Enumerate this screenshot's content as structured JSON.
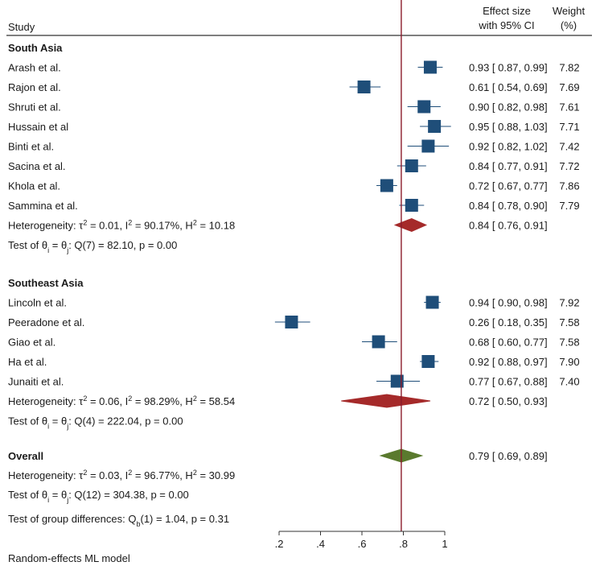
{
  "header": {
    "study": "Study",
    "effect_line1": "Effect size",
    "effect_line2": "with 95% CI",
    "weight_line1": "Weight",
    "weight_line2": "(%)"
  },
  "footer": {
    "model": "Random-effects ML model"
  },
  "chart_data": {
    "type": "forest",
    "axis": {
      "xlim": [
        0.2,
        1.0
      ],
      "ticks": [
        0.2,
        0.4,
        0.6,
        0.8,
        1.0
      ],
      "tick_labels": [
        ".2",
        ".4",
        ".6",
        ".8",
        "1"
      ]
    },
    "reference_line": 0.79,
    "groups": [
      {
        "name": "South Asia",
        "studies": [
          {
            "label": "Arash et al.",
            "es": 0.93,
            "lo": 0.87,
            "hi": 0.99,
            "ci_text": "0.93 [ 0.87,  0.99]",
            "weight": "7.82"
          },
          {
            "label": "Rajon et al.",
            "es": 0.61,
            "lo": 0.54,
            "hi": 0.69,
            "ci_text": "0.61 [ 0.54,  0.69]",
            "weight": "7.69"
          },
          {
            "label": "Shruti et al.",
            "es": 0.9,
            "lo": 0.82,
            "hi": 0.98,
            "ci_text": "0.90 [ 0.82,  0.98]",
            "weight": "7.61"
          },
          {
            "label": "Hussain et al",
            "es": 0.95,
            "lo": 0.88,
            "hi": 1.03,
            "ci_text": "0.95 [ 0.88,  1.03]",
            "weight": "7.71"
          },
          {
            "label": "Binti et al.",
            "es": 0.92,
            "lo": 0.82,
            "hi": 1.02,
            "ci_text": "0.92 [ 0.82,  1.02]",
            "weight": "7.42"
          },
          {
            "label": "Sacina et al.",
            "es": 0.84,
            "lo": 0.77,
            "hi": 0.91,
            "ci_text": "0.84 [ 0.77,  0.91]",
            "weight": "7.72"
          },
          {
            "label": "Khola et al.",
            "es": 0.72,
            "lo": 0.67,
            "hi": 0.77,
            "ci_text": "0.72 [ 0.67,  0.77]",
            "weight": "7.86"
          },
          {
            "label": "Sammina et al.",
            "es": 0.84,
            "lo": 0.78,
            "hi": 0.9,
            "ci_text": "0.84 [ 0.78,  0.90]",
            "weight": "7.79"
          }
        ],
        "pooled": {
          "es": 0.84,
          "lo": 0.76,
          "hi": 0.91,
          "ci_text": "0.84 [ 0.76,  0.91]"
        },
        "heterogeneity": {
          "prefix": "Heterogeneity: τ",
          "tau_val": " = 0.01, I",
          "i_val": " = 90.17%, H",
          "h_val": " = 10.18"
        },
        "test": {
          "prefix": "Test of θ",
          "mid": " = θ",
          "suffix": ": Q(7) = 82.10, p = 0.00"
        }
      },
      {
        "name": "Southeast Asia",
        "studies": [
          {
            "label": "Lincoln et al.",
            "es": 0.94,
            "lo": 0.9,
            "hi": 0.98,
            "ci_text": "0.94 [ 0.90,  0.98]",
            "weight": "7.92"
          },
          {
            "label": "Peeradone et al.",
            "es": 0.26,
            "lo": 0.18,
            "hi": 0.35,
            "ci_text": "0.26 [ 0.18,  0.35]",
            "weight": "7.58"
          },
          {
            "label": "Giao et al.",
            "es": 0.68,
            "lo": 0.6,
            "hi": 0.77,
            "ci_text": "0.68 [ 0.60,  0.77]",
            "weight": "7.58"
          },
          {
            "label": "Ha et al.",
            "es": 0.92,
            "lo": 0.88,
            "hi": 0.97,
            "ci_text": "0.92 [ 0.88,  0.97]",
            "weight": "7.90"
          },
          {
            "label": "Junaiti et al.",
            "es": 0.77,
            "lo": 0.67,
            "hi": 0.88,
            "ci_text": "0.77 [ 0.67,  0.88]",
            "weight": "7.40"
          }
        ],
        "pooled": {
          "es": 0.72,
          "lo": 0.5,
          "hi": 0.93,
          "ci_text": "0.72 [ 0.50,  0.93]"
        },
        "heterogeneity": {
          "prefix": "Heterogeneity: τ",
          "tau_val": " = 0.06, I",
          "i_val": " = 98.29%, H",
          "h_val": " = 58.54"
        },
        "test": {
          "prefix": "Test of θ",
          "mid": " = θ",
          "suffix": ": Q(4) = 222.04, p = 0.00"
        }
      }
    ],
    "overall": {
      "name": "Overall",
      "pooled": {
        "es": 0.79,
        "lo": 0.69,
        "hi": 0.89,
        "ci_text": "0.79 [ 0.69,  0.89]"
      },
      "heterogeneity": {
        "prefix": "Heterogeneity: τ",
        "tau_val": " = 0.03, I",
        "i_val": " = 96.77%, H",
        "h_val": " = 30.99"
      },
      "test": {
        "prefix": "Test of θ",
        "mid": " = θ",
        "suffix": ": Q(12) = 304.38, p = 0.00"
      },
      "group_diff": {
        "prefix": "Test of group differences: Q",
        "sub": "b",
        "suffix": "(1) = 1.04, p = 0.31"
      }
    },
    "colors": {
      "marker": "#1f4e79",
      "ci_line": "#1f4e79",
      "subgroup_diamond": "#a52a2a",
      "overall_diamond": "#5a7a2e",
      "reference_line": "#8b1a2b"
    }
  }
}
